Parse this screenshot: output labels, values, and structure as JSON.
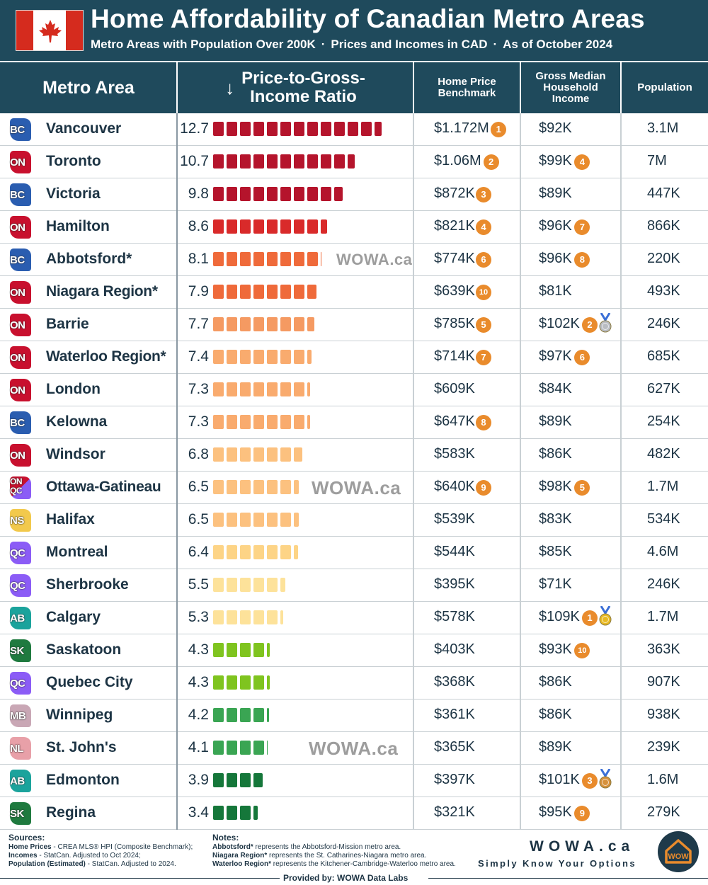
{
  "header": {
    "title": "Home Affordability of Canadian Metro Areas",
    "subtitle_parts": [
      "Metro Areas with Population Over 200K",
      "Prices and Incomes in CAD",
      "As of October 2024"
    ],
    "separator": "·"
  },
  "columns": {
    "metro": "Metro Area",
    "ratio_arrow": "↓",
    "ratio_line1": "Price-to-Gross-",
    "ratio_line2": "Income Ratio",
    "price_line1": "Home Price",
    "price_line2": "Benchmark",
    "income_line1": "Gross Median",
    "income_line2": "Household",
    "income_line3": "Income",
    "population": "Population"
  },
  "watermark_text": "WOWA.ca",
  "colors": {
    "header_bg": "#1f4a5c",
    "rank_badge": "#e98b2c",
    "provinces": {
      "BC": "#2a5db0",
      "ON": "#c8102e",
      "NS": "#f2c94c",
      "QC": "#8b5cf6",
      "AB": "#1ba39c",
      "SK": "#1f7a3f",
      "MB": "#c9a7b5",
      "NL": "#e8a0a8"
    }
  },
  "chart_data": {
    "type": "table",
    "title": "Home Affordability of Canadian Metro Areas",
    "sort": "Price-to-Gross-Income Ratio, descending",
    "rows": [
      {
        "metro": "Vancouver",
        "province": "BC",
        "ratio": "12.7",
        "ratio_value": 12.7,
        "price": "$1.172M",
        "price_rank": "1",
        "income": "$92K",
        "income_rank": "",
        "population": "3.1M",
        "medal": ""
      },
      {
        "metro": "Toronto",
        "province": "ON",
        "ratio": "10.7",
        "ratio_value": 10.7,
        "price": "$1.06M",
        "price_rank": "2",
        "income": "$99K",
        "income_rank": "4",
        "population": "7M",
        "medal": ""
      },
      {
        "metro": "Victoria",
        "province": "BC",
        "ratio": "9.8",
        "ratio_value": 9.8,
        "price": "$872K",
        "price_rank": "3",
        "income": "$89K",
        "income_rank": "",
        "population": "447K",
        "medal": ""
      },
      {
        "metro": "Hamilton",
        "province": "ON",
        "ratio": "8.6",
        "ratio_value": 8.6,
        "price": "$821K",
        "price_rank": "4",
        "income": "$96K",
        "income_rank": "7",
        "population": "866K",
        "medal": ""
      },
      {
        "metro": "Abbotsford*",
        "province": "BC",
        "ratio": "8.1",
        "ratio_value": 8.1,
        "price": "$774K",
        "price_rank": "6",
        "income": "$96K",
        "income_rank": "8",
        "population": "220K",
        "medal": ""
      },
      {
        "metro": "Niagara Region*",
        "province": "ON",
        "ratio": "7.9",
        "ratio_value": 7.9,
        "price": "$639K",
        "price_rank": "10",
        "income": "$81K",
        "income_rank": "",
        "population": "493K",
        "medal": ""
      },
      {
        "metro": "Barrie",
        "province": "ON",
        "ratio": "7.7",
        "ratio_value": 7.7,
        "price": "$785K",
        "price_rank": "5",
        "income": "$102K",
        "income_rank": "2",
        "population": "246K",
        "medal": "silver"
      },
      {
        "metro": "Waterloo Region*",
        "province": "ON",
        "ratio": "7.4",
        "ratio_value": 7.4,
        "price": "$714K",
        "price_rank": "7",
        "income": "$97K",
        "income_rank": "6",
        "population": "685K",
        "medal": ""
      },
      {
        "metro": "London",
        "province": "ON",
        "ratio": "7.3",
        "ratio_value": 7.3,
        "price": "$609K",
        "price_rank": "",
        "income": "$84K",
        "income_rank": "",
        "population": "627K",
        "medal": ""
      },
      {
        "metro": "Kelowna",
        "province": "BC",
        "ratio": "7.3",
        "ratio_value": 7.3,
        "price": "$647K",
        "price_rank": "8",
        "income": "$89K",
        "income_rank": "",
        "population": "254K",
        "medal": ""
      },
      {
        "metro": "Windsor",
        "province": "ON",
        "ratio": "6.8",
        "ratio_value": 6.8,
        "price": "$583K",
        "price_rank": "",
        "income": "$86K",
        "income_rank": "",
        "population": "482K",
        "medal": ""
      },
      {
        "metro": "Ottawa-Gatineau",
        "province": "ON QC",
        "ratio": "6.5",
        "ratio_value": 6.5,
        "price": "$640K",
        "price_rank": "9",
        "income": "$98K",
        "income_rank": "5",
        "population": "1.7M",
        "medal": ""
      },
      {
        "metro": "Halifax",
        "province": "NS",
        "ratio": "6.5",
        "ratio_value": 6.5,
        "price": "$539K",
        "price_rank": "",
        "income": "$83K",
        "income_rank": "",
        "population": "534K",
        "medal": ""
      },
      {
        "metro": "Montreal",
        "province": "QC",
        "ratio": "6.4",
        "ratio_value": 6.4,
        "price": "$544K",
        "price_rank": "",
        "income": "$85K",
        "income_rank": "",
        "population": "4.6M",
        "medal": ""
      },
      {
        "metro": "Sherbrooke",
        "province": "QC",
        "ratio": "5.5",
        "ratio_value": 5.5,
        "price": "$395K",
        "price_rank": "",
        "income": "$71K",
        "income_rank": "",
        "population": "246K",
        "medal": ""
      },
      {
        "metro": "Calgary",
        "province": "AB",
        "ratio": "5.3",
        "ratio_value": 5.3,
        "price": "$578K",
        "price_rank": "",
        "income": "$109K",
        "income_rank": "1",
        "population": "1.7M",
        "medal": "gold"
      },
      {
        "metro": "Saskatoon",
        "province": "SK",
        "ratio": "4.3",
        "ratio_value": 4.3,
        "price": "$403K",
        "price_rank": "",
        "income": "$93K",
        "income_rank": "10",
        "population": "363K",
        "medal": ""
      },
      {
        "metro": "Quebec City",
        "province": "QC",
        "ratio": "4.3",
        "ratio_value": 4.3,
        "price": "$368K",
        "price_rank": "",
        "income": "$86K",
        "income_rank": "",
        "population": "907K",
        "medal": ""
      },
      {
        "metro": "Winnipeg",
        "province": "MB",
        "ratio": "4.2",
        "ratio_value": 4.2,
        "price": "$361K",
        "price_rank": "",
        "income": "$86K",
        "income_rank": "",
        "population": "938K",
        "medal": ""
      },
      {
        "metro": "St. John's",
        "province": "NL",
        "ratio": "4.1",
        "ratio_value": 4.1,
        "price": "$365K",
        "price_rank": "",
        "income": "$89K",
        "income_rank": "",
        "population": "239K",
        "medal": ""
      },
      {
        "metro": "Edmonton",
        "province": "AB",
        "ratio": "3.9",
        "ratio_value": 3.9,
        "price": "$397K",
        "price_rank": "",
        "income": "$101K",
        "income_rank": "3",
        "population": "1.6M",
        "medal": "bronze"
      },
      {
        "metro": "Regina",
        "province": "SK",
        "ratio": "3.4",
        "ratio_value": 3.4,
        "price": "$321K",
        "price_rank": "",
        "income": "$95K",
        "income_rank": "9",
        "population": "279K",
        "medal": ""
      }
    ]
  },
  "footer": {
    "sources_title": "Sources:",
    "sources": [
      {
        "label": "Home Prices",
        "text": " - CREA MLS® HPI (Composite Benchmark);"
      },
      {
        "label": "Incomes",
        "text": " - StatCan. Adjusted to Oct 2024;"
      },
      {
        "label": "Population (Estimated)",
        "text": " - StatCan. Adjusted to 2024."
      }
    ],
    "notes_title": "Notes:",
    "notes": [
      {
        "label": "Abbotsford*",
        "text": " represents the Abbotsford-Mission metro area."
      },
      {
        "label": "Niagara Region*",
        "text": " represents the St. Catharines-Niagara metro area."
      },
      {
        "label": "Waterloo Region*",
        "text": " represents the Kitchener-Cambridge-Waterloo metro area."
      }
    ],
    "brand": "WOWA.ca",
    "tagline": "Simply Know Your Options",
    "provided_by": "Provided by: WOWA Data Labs",
    "logo_text": "WOW"
  }
}
